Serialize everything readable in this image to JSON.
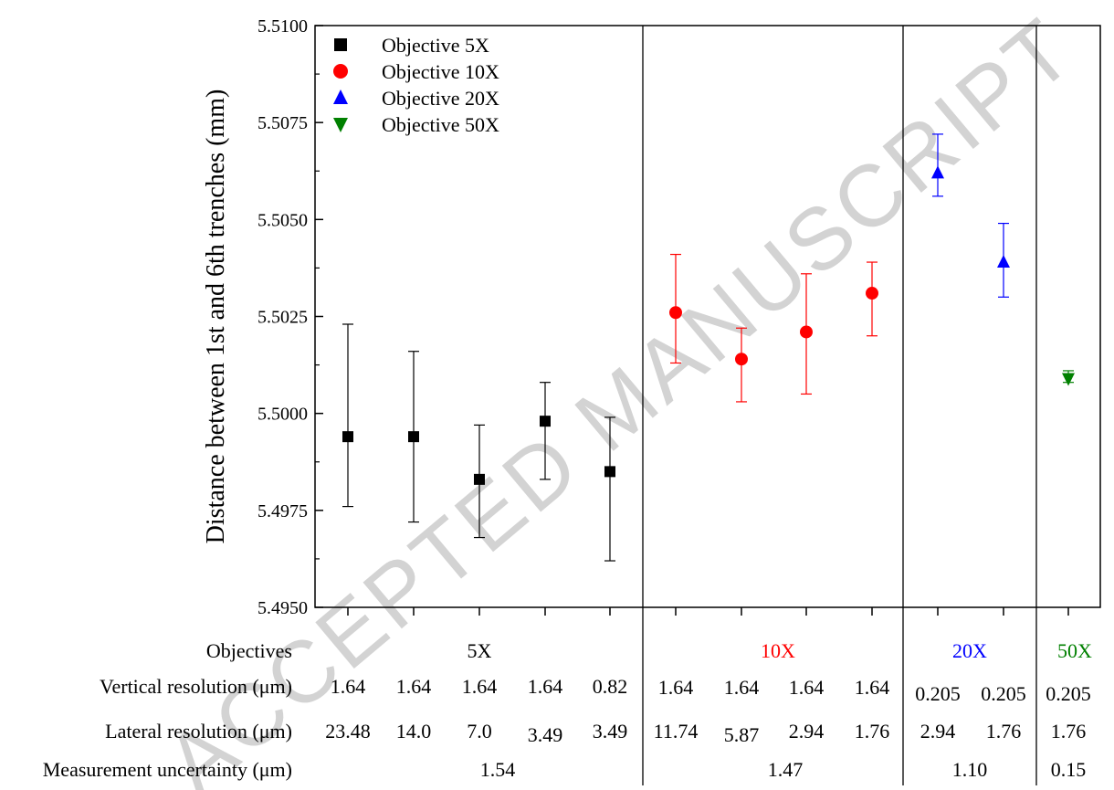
{
  "chart_data": {
    "type": "scatter",
    "ylabel": "Distance between 1st and 6th trenches (mm)",
    "xlabel": "",
    "ylim": [
      5.495,
      5.51
    ],
    "yticks": [
      "5.4950",
      "5.4975",
      "5.5000",
      "5.5025",
      "5.5050",
      "5.5075",
      "5.5100"
    ],
    "grid": false,
    "legend_position": "top-left",
    "series": [
      {
        "name": "Objective 5X",
        "color": "#000000",
        "marker": "square",
        "x": [
          1,
          2,
          3,
          4,
          5
        ],
        "y": [
          5.4994,
          5.4994,
          5.4983,
          5.4998,
          5.4985
        ],
        "err_low": [
          5.4976,
          5.4972,
          5.4968,
          5.4983,
          5.4962
        ],
        "err_high": [
          5.5023,
          5.5016,
          5.4997,
          5.5008,
          5.4999
        ]
      },
      {
        "name": "Objective 10X",
        "color": "#ff0000",
        "marker": "circle",
        "x": [
          6,
          7,
          8,
          9
        ],
        "y": [
          5.5026,
          5.5014,
          5.5021,
          5.5031
        ],
        "err_low": [
          5.5013,
          5.5003,
          5.5005,
          5.502
        ],
        "err_high": [
          5.5041,
          5.5022,
          5.5036,
          5.5039
        ]
      },
      {
        "name": "Objective 20X",
        "color": "#0000ff",
        "marker": "triangle-up",
        "x": [
          10,
          11
        ],
        "y": [
          5.5062,
          5.5039
        ],
        "err_low": [
          5.5056,
          5.503
        ],
        "err_high": [
          5.5072,
          5.5049
        ]
      },
      {
        "name": "Objective 50X",
        "color": "#008000",
        "marker": "triangle-down",
        "x": [
          12
        ],
        "y": [
          5.5009
        ],
        "err_low": [
          5.5008
        ],
        "err_high": [
          5.5011
        ]
      }
    ],
    "table": {
      "row_labels": [
        "Objectives",
        "Vertical resolution (μm)",
        "Lateral resolution (μm)",
        "Measurement uncertainty (μm)"
      ],
      "objectives": [
        {
          "label": "5X",
          "color": "#000000"
        },
        {
          "label": "10X",
          "color": "#ff0000"
        },
        {
          "label": "20X",
          "color": "#0000ff"
        },
        {
          "label": "50X",
          "color": "#008000"
        }
      ],
      "vertical": [
        "1.64",
        "1.64",
        "1.64",
        "1.64",
        "0.82",
        "1.64",
        "1.64",
        "1.64",
        "1.64",
        "0.205",
        "0.205",
        "0.205"
      ],
      "lateral": [
        "23.48",
        "14.0",
        "7.0",
        "3.49",
        "3.49",
        "11.74",
        "5.87",
        "2.94",
        "1.76",
        "2.94",
        "1.76",
        "1.76"
      ],
      "uncertainty": [
        "1.54",
        "1.47",
        "1.10",
        "0.15"
      ]
    },
    "watermark": "ACCEPTED MANUSCRIPT"
  }
}
